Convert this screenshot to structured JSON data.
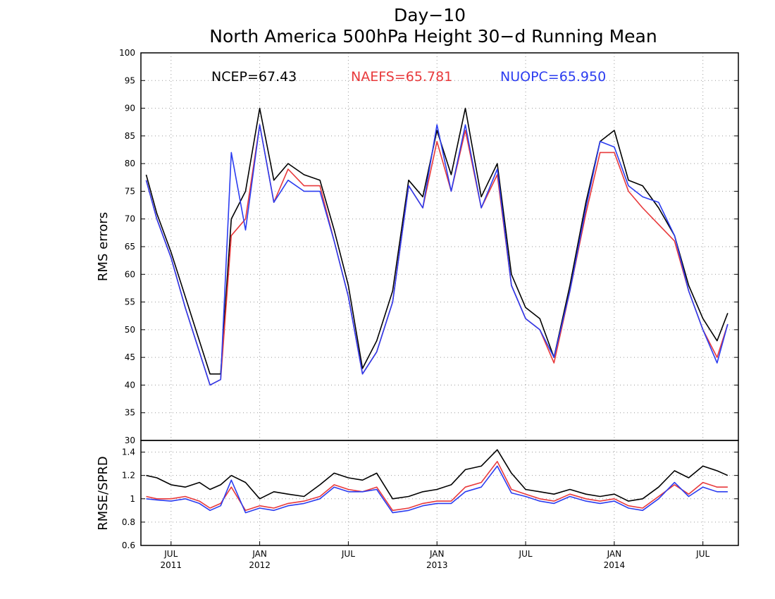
{
  "chart_data": [
    {
      "panel": "top",
      "type": "line",
      "title": "Day−10",
      "subtitle": "North America 500hPa Height 30−d Running Mean",
      "ylabel": "RMS errors",
      "xlabel": "",
      "ylim": [
        30,
        100
      ],
      "yticks": [
        30,
        35,
        40,
        45,
        50,
        55,
        60,
        65,
        70,
        75,
        80,
        85,
        90,
        95,
        100
      ],
      "grid": true,
      "legend_placement": "top",
      "legend": [
        {
          "text": "NCEP=67.43",
          "color": "#000000"
        },
        {
          "text": "NAEFS=65.781",
          "color": "#e8393b"
        },
        {
          "text": "NUOPC=65.950",
          "color": "#2b3cf0"
        }
      ],
      "x": [
        2011.36,
        2011.42,
        2011.5,
        2011.58,
        2011.66,
        2011.72,
        2011.78,
        2011.84,
        2011.92,
        2012.0,
        2012.08,
        2012.16,
        2012.25,
        2012.34,
        2012.42,
        2012.5,
        2012.58,
        2012.66,
        2012.75,
        2012.84,
        2012.92,
        2013.0,
        2013.08,
        2013.16,
        2013.25,
        2013.34,
        2013.42,
        2013.5,
        2013.58,
        2013.66,
        2013.75,
        2013.84,
        2013.92,
        2014.0,
        2014.08,
        2014.16,
        2014.25,
        2014.34,
        2014.42,
        2014.5,
        2014.58,
        2014.64
      ],
      "series": [
        {
          "name": "NCEP",
          "color": "#000000",
          "values": [
            78,
            71,
            64,
            56,
            48,
            42,
            42,
            70,
            75,
            90,
            77,
            80,
            78,
            77,
            68,
            58,
            43,
            48,
            57,
            77,
            74,
            86,
            78,
            90,
            74,
            80,
            60,
            54,
            52,
            45,
            58,
            73,
            84,
            86,
            77,
            76,
            72,
            67,
            58,
            52,
            48,
            53
          ]
        },
        {
          "name": "NAEFS",
          "color": "#e8393b",
          "values": [
            77,
            70,
            63,
            54,
            46,
            40,
            41,
            67,
            70,
            87,
            73,
            79,
            76,
            76,
            66,
            56,
            42,
            46,
            55,
            76,
            72,
            84,
            75,
            86,
            72,
            78,
            58,
            52,
            50,
            44,
            57,
            71,
            82,
            82,
            75,
            72,
            69,
            66,
            57,
            50,
            45,
            51
          ]
        },
        {
          "name": "NUOPC",
          "color": "#2b3cf0",
          "values": [
            77,
            70,
            63,
            54,
            46,
            40,
            41,
            82,
            68,
            87,
            73,
            77,
            75,
            75,
            66,
            56,
            42,
            46,
            55,
            76,
            72,
            87,
            75,
            87,
            72,
            79,
            58,
            52,
            50,
            45,
            57,
            72,
            84,
            83,
            76,
            74,
            73,
            67,
            57,
            50,
            44,
            51
          ]
        }
      ]
    },
    {
      "panel": "bottom",
      "type": "line",
      "title": "",
      "ylabel": "RMSE/SPRD",
      "xlabel": "",
      "ylim": [
        0.6,
        1.5
      ],
      "yticks": [
        0.6,
        0.8,
        1,
        1.2,
        1.4
      ],
      "grid": true,
      "x": [
        2011.36,
        2011.42,
        2011.5,
        2011.58,
        2011.66,
        2011.72,
        2011.78,
        2011.84,
        2011.92,
        2012.0,
        2012.08,
        2012.16,
        2012.25,
        2012.34,
        2012.42,
        2012.5,
        2012.58,
        2012.66,
        2012.75,
        2012.84,
        2012.92,
        2013.0,
        2013.08,
        2013.16,
        2013.25,
        2013.34,
        2013.42,
        2013.5,
        2013.58,
        2013.66,
        2013.75,
        2013.84,
        2013.92,
        2014.0,
        2014.08,
        2014.16,
        2014.25,
        2014.34,
        2014.42,
        2014.5,
        2014.58,
        2014.64
      ],
      "series": [
        {
          "name": "NCEP",
          "color": "#000000",
          "values": [
            1.2,
            1.18,
            1.12,
            1.1,
            1.14,
            1.08,
            1.12,
            1.2,
            1.14,
            1.0,
            1.06,
            1.04,
            1.02,
            1.12,
            1.22,
            1.18,
            1.16,
            1.22,
            1.0,
            1.02,
            1.06,
            1.08,
            1.12,
            1.25,
            1.28,
            1.42,
            1.22,
            1.08,
            1.06,
            1.04,
            1.08,
            1.04,
            1.02,
            1.04,
            0.98,
            1.0,
            1.1,
            1.24,
            1.18,
            1.28,
            1.24,
            1.2
          ]
        },
        {
          "name": "NAEFS",
          "color": "#e8393b",
          "values": [
            1.02,
            1.0,
            1.0,
            1.02,
            0.98,
            0.92,
            0.96,
            1.1,
            0.9,
            0.94,
            0.92,
            0.96,
            0.98,
            1.02,
            1.12,
            1.08,
            1.06,
            1.1,
            0.9,
            0.92,
            0.96,
            0.98,
            0.98,
            1.1,
            1.14,
            1.32,
            1.08,
            1.04,
            1.0,
            0.98,
            1.04,
            1.0,
            0.98,
            1.0,
            0.94,
            0.92,
            1.02,
            1.12,
            1.04,
            1.14,
            1.1,
            1.1
          ]
        },
        {
          "name": "NUOPC",
          "color": "#2b3cf0",
          "values": [
            1.0,
            0.99,
            0.98,
            1.0,
            0.96,
            0.9,
            0.94,
            1.16,
            0.88,
            0.92,
            0.9,
            0.94,
            0.96,
            1.0,
            1.1,
            1.06,
            1.06,
            1.08,
            0.88,
            0.9,
            0.94,
            0.96,
            0.96,
            1.06,
            1.1,
            1.28,
            1.05,
            1.02,
            0.98,
            0.96,
            1.02,
            0.98,
            0.96,
            0.98,
            0.92,
            0.9,
            1.0,
            1.14,
            1.02,
            1.1,
            1.06,
            1.06
          ]
        }
      ]
    }
  ],
  "x_axis": {
    "xlim": [
      2011.33,
      2014.7
    ],
    "ticks": [
      {
        "x": 2011.5,
        "line1": "JUL",
        "line2": "2011"
      },
      {
        "x": 2012.0,
        "line1": "JAN",
        "line2": "2012"
      },
      {
        "x": 2012.5,
        "line1": "JUL",
        "line2": ""
      },
      {
        "x": 2013.0,
        "line1": "JAN",
        "line2": "2013"
      },
      {
        "x": 2013.5,
        "line1": "JUL",
        "line2": ""
      },
      {
        "x": 2014.0,
        "line1": "JAN",
        "line2": "2014"
      },
      {
        "x": 2014.5,
        "line1": "JUL",
        "line2": ""
      }
    ]
  }
}
